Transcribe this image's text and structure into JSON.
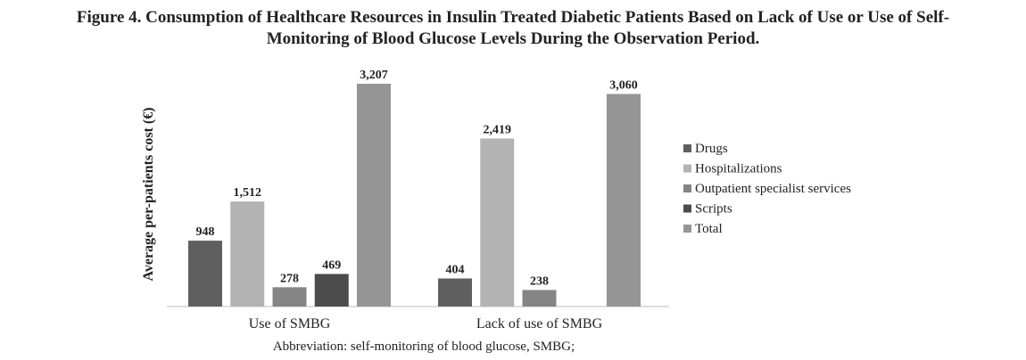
{
  "title": {
    "line1": "Figure 4. Consumption of Healthcare Resources in Insulin Treated Diabetic Patients Based on Lack of Use or Use of Self-",
    "line2": "Monitoring of Blood Glucose Levels During the Observation Period."
  },
  "abbreviation": "Abbreviation: self-monitoring of blood glucose, SMBG;",
  "chart_data": {
    "type": "bar",
    "title": "",
    "xlabel": "",
    "ylabel": "Average per-patients cost (€)",
    "categories": [
      "Use of SMBG",
      "Lack of use of SMBG"
    ],
    "ylim": [
      0,
      3300
    ],
    "grid": false,
    "legend_position": "right",
    "series": [
      {
        "name": "Drugs",
        "values": [
          948,
          404
        ],
        "labels": [
          "948",
          "404"
        ],
        "color": "#5f5f5f"
      },
      {
        "name": "Hospitalizations",
        "values": [
          1512,
          2419
        ],
        "labels": [
          "1,512",
          "2,419"
        ],
        "color": "#b3b3b3"
      },
      {
        "name": "Outpatient specialist services",
        "values": [
          278,
          238
        ],
        "labels": [
          "278",
          "238"
        ],
        "color": "#858585"
      },
      {
        "name": "Scripts",
        "values": [
          469,
          null
        ],
        "labels": [
          "469",
          null
        ],
        "color": "#4b4b4b"
      },
      {
        "name": "Total",
        "values": [
          3207,
          3060
        ],
        "labels": [
          "3,207",
          "3,060"
        ],
        "color": "#959595"
      }
    ]
  }
}
